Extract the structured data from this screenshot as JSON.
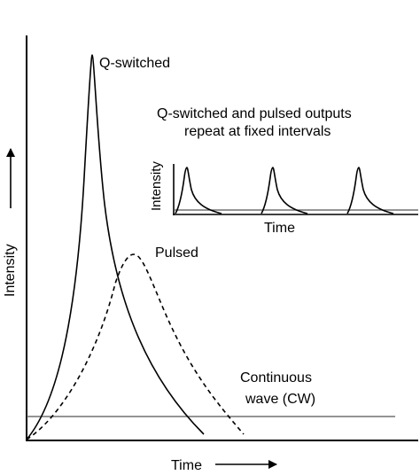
{
  "labels": {
    "q_switched": "Q-switched",
    "pulsed": "Pulsed",
    "cw_line1": "Continuous",
    "cw_line2": "wave (CW)",
    "inset_caption_line1": "Q-switched and pulsed outputs",
    "inset_caption_line2": "repeat at fixed intervals",
    "inset_y_axis": "Intensity",
    "inset_x_axis": "Time",
    "main_y_axis": "Intensity",
    "main_x_axis": "Time"
  },
  "colors": {
    "ink": "#000000",
    "cw_line": "#555555",
    "background": "#ffffff"
  }
}
